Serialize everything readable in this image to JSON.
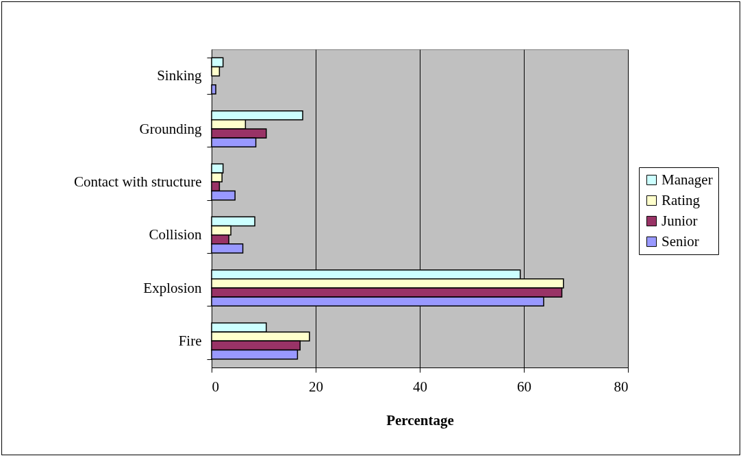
{
  "chart_data": {
    "type": "bar",
    "orientation": "horizontal",
    "xlabel": "Percentage",
    "categories": [
      "Sinking",
      "Grounding",
      "Contact with structure",
      "Collision",
      "Explosion",
      "Fire"
    ],
    "series": [
      {
        "name": "Manager",
        "color": "#ccffff",
        "values": [
          2.2,
          17.5,
          2.2,
          8.3,
          59.3,
          10.5
        ]
      },
      {
        "name": "Rating",
        "color": "#ffffcc",
        "values": [
          1.5,
          6.5,
          2.0,
          3.7,
          67.6,
          18.8
        ]
      },
      {
        "name": "Junior",
        "color": "#993366",
        "values": [
          null,
          10.5,
          1.5,
          3.3,
          67.3,
          17.0
        ]
      },
      {
        "name": "Senior",
        "color": "#9999ff",
        "values": [
          0.8,
          8.5,
          4.5,
          6.0,
          63.8,
          16.5
        ]
      }
    ],
    "xlim": [
      0,
      80
    ],
    "xticks": [
      0,
      20,
      40,
      60,
      80
    ],
    "grid": "x",
    "legend": "right"
  }
}
